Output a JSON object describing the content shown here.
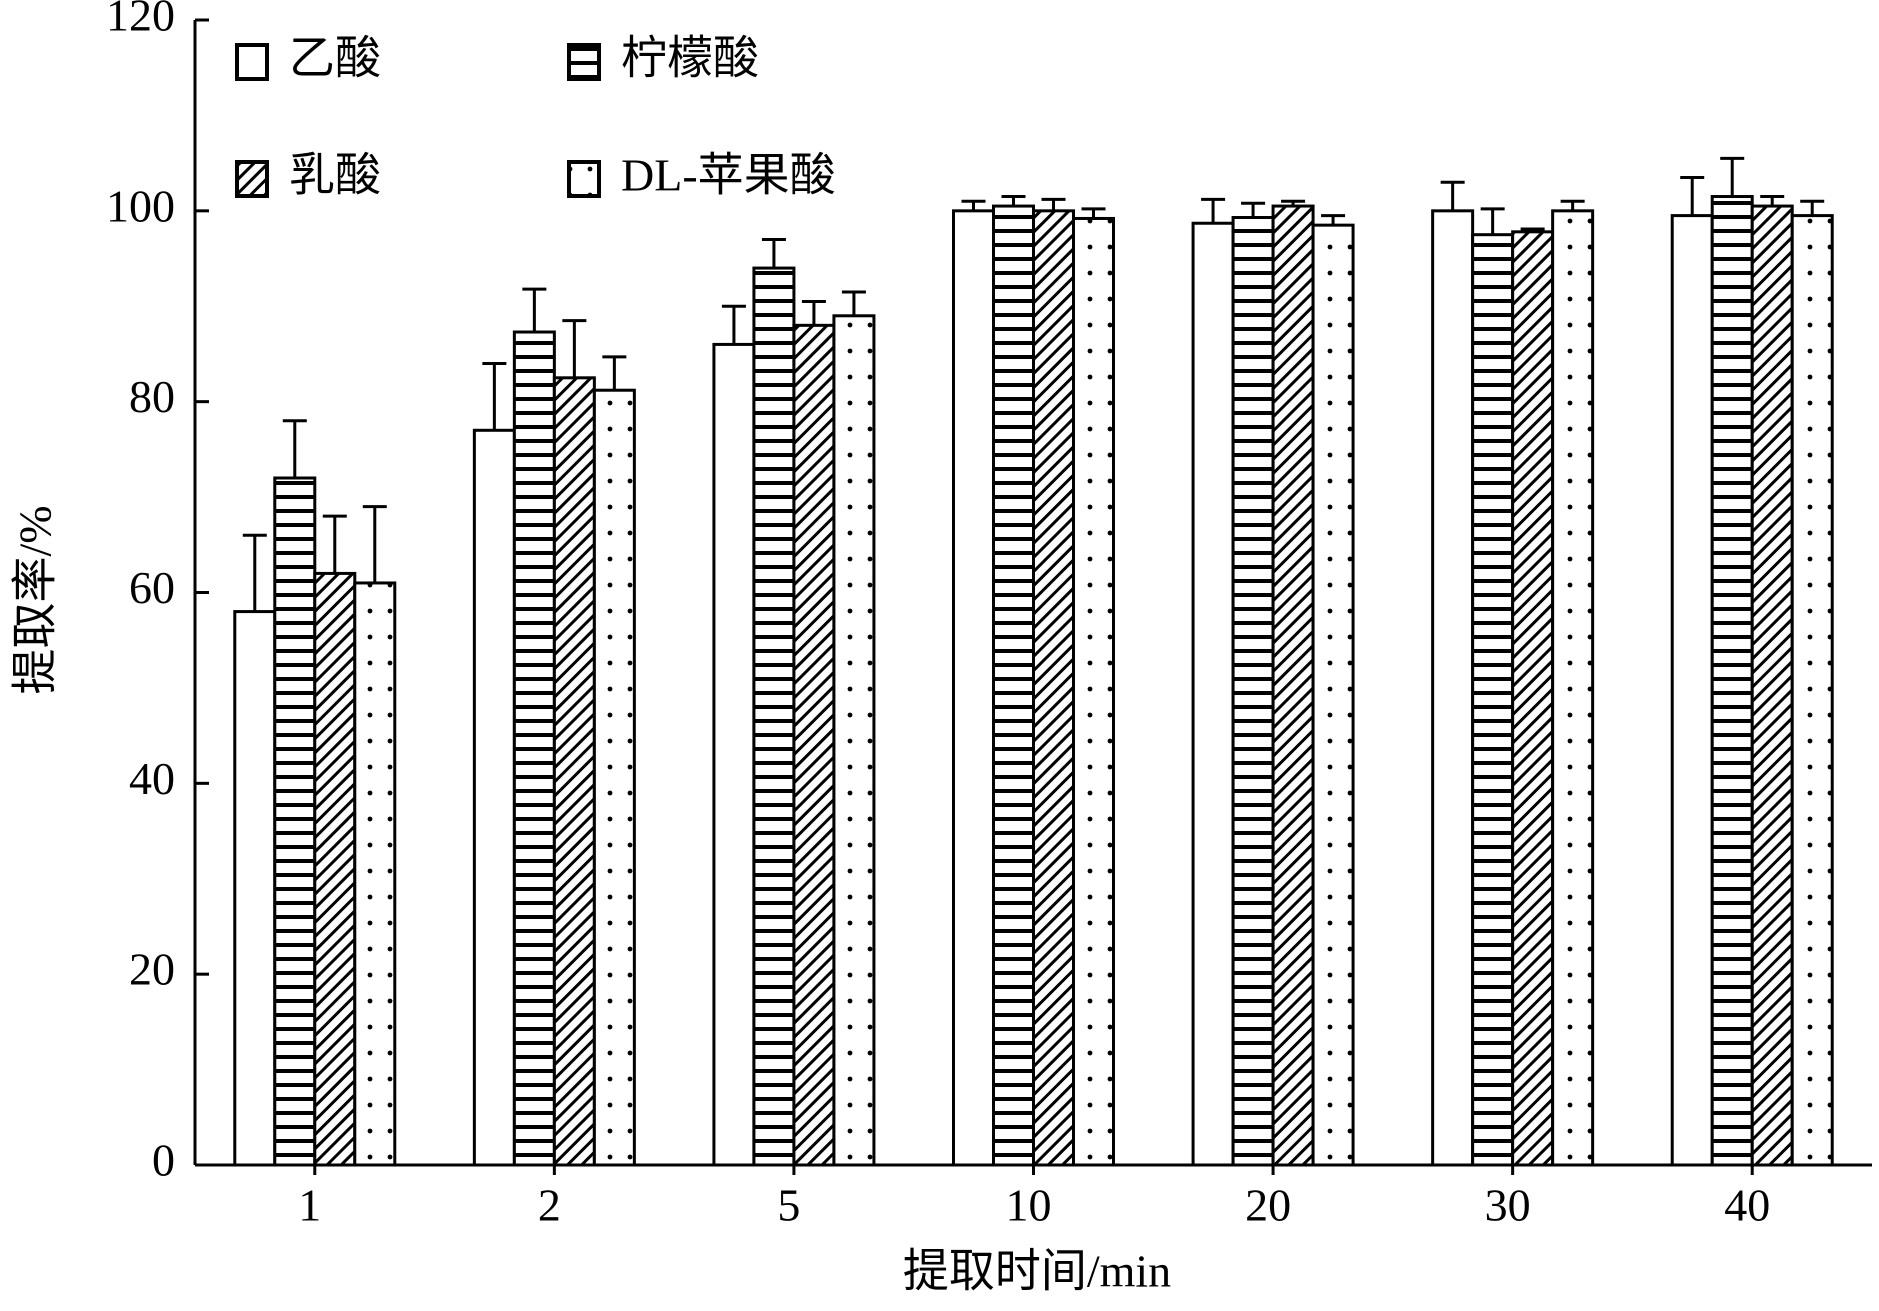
{
  "chart_data": {
    "type": "bar",
    "x_label": "提取时间/min",
    "y_label": "提取率/%",
    "categories": [
      "1",
      "2",
      "5",
      "10",
      "20",
      "30",
      "40"
    ],
    "series": [
      {
        "name": "乙酸",
        "color": "#ffffff",
        "pattern": "none",
        "values": [
          58,
          77,
          86,
          100,
          98.7,
          100,
          99.5
        ],
        "errors": [
          8,
          7,
          4,
          1,
          2.5,
          3,
          4
        ]
      },
      {
        "name": "柠檬酸",
        "color": "#ffffff",
        "pattern": "horizontal",
        "values": [
          72,
          87.3,
          94,
          100.5,
          99.3,
          97.5,
          101.5
        ],
        "errors": [
          6,
          4.5,
          3,
          1,
          1.5,
          2.7,
          4
        ]
      },
      {
        "name": "乳酸",
        "color": "#ffffff",
        "pattern": "diagonal",
        "values": [
          62,
          82.5,
          88,
          100,
          100.5,
          97.8,
          100.5
        ],
        "errors": [
          6,
          6,
          2.5,
          1.2,
          0.5,
          0.3,
          1
        ]
      },
      {
        "name": "DL-苹果酸",
        "color": "#ffffff",
        "pattern": "dots",
        "values": [
          61,
          81.2,
          89,
          99.2,
          98.5,
          100,
          99.5
        ],
        "errors": [
          8,
          3.5,
          2.5,
          1,
          1,
          1,
          1.5
        ]
      }
    ],
    "legend": "top-left",
    "ylim": [
      0,
      120
    ],
    "yticks": [
      0,
      20,
      40,
      60,
      80,
      100,
      120
    ]
  }
}
